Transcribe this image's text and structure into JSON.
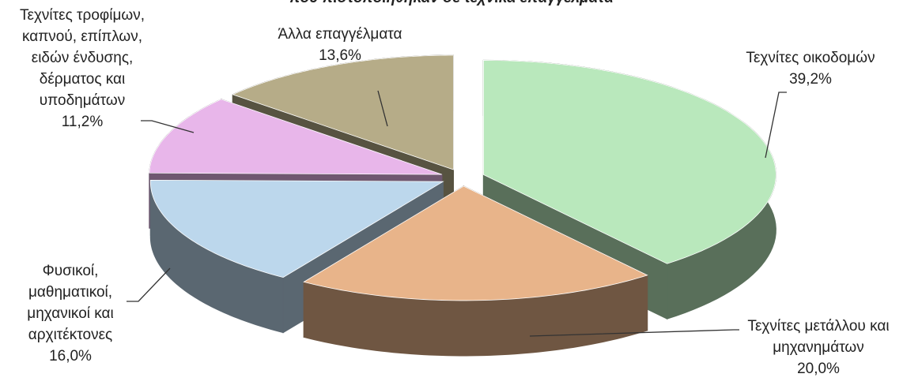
{
  "chart_data": {
    "type": "pie3d",
    "title": "που πιστοποιήθηκαν σε τεχνικά επαγγέλματα",
    "categories": [
      "Τεχνίτες οικοδομών",
      "Τεχνίτες μετάλλου και μηχανημάτων",
      "Φυσικοί, μαθηματικοί, μηχανικοί και αρχιτέκτονες",
      "Τεχνίτες τροφίμων, καπνού, επίπλων, ειδών ένδυσης, δέρματος και υποδημάτων",
      "Άλλα επαγγέλματα"
    ],
    "values": [
      39.2,
      20.0,
      16.0,
      11.2,
      13.6
    ],
    "value_labels": [
      "39,2%",
      "20,0%",
      "16,0%",
      "11,2%",
      "13,6%"
    ],
    "colors": [
      "#b9e8bc",
      "#e8b48a",
      "#bcd7ec",
      "#e8b6ea",
      "#b6ac88"
    ]
  }
}
